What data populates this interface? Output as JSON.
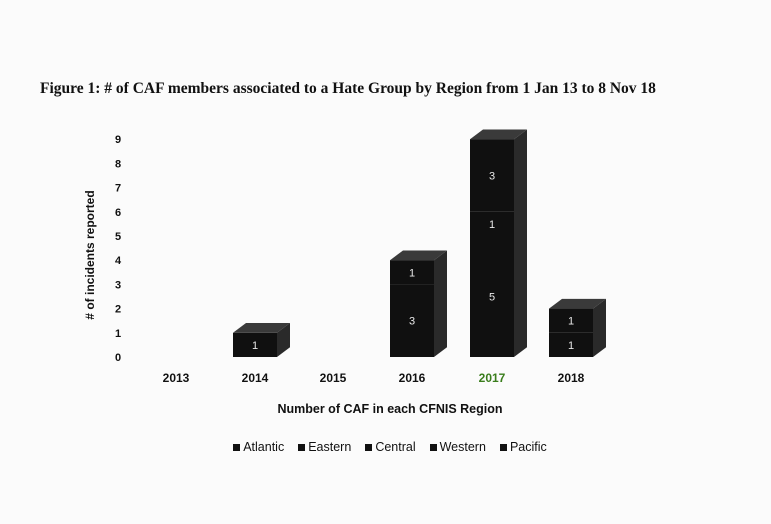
{
  "chart_data": {
    "type": "bar",
    "title": "Figure 1: # of CAF members associated to a Hate Group by Region from 1 Jan 13 to 8 Nov 18",
    "xlabel": "Number of CAF in each CFNIS Region",
    "ylabel": "# of incidents reported",
    "categories": [
      "2013",
      "2014",
      "2015",
      "2016",
      "2017",
      "2018"
    ],
    "ylim": [
      0,
      9
    ],
    "yticks": [
      "0",
      "1",
      "2",
      "3",
      "4",
      "5",
      "6",
      "7",
      "8",
      "9"
    ],
    "stacked": true,
    "grid": false,
    "legend_position": "bottom",
    "series": [
      {
        "name": "Atlantic",
        "values": [
          0,
          0,
          0,
          0,
          0,
          0
        ]
      },
      {
        "name": "Eastern",
        "values": [
          0,
          1,
          0,
          3,
          5,
          1
        ]
      },
      {
        "name": "Central",
        "values": [
          0,
          0,
          0,
          1,
          1,
          1
        ]
      },
      {
        "name": "Western",
        "values": [
          0,
          0,
          0,
          0,
          3,
          0
        ]
      },
      {
        "name": "Pacific",
        "values": [
          0,
          0,
          0,
          0,
          0,
          0
        ]
      }
    ],
    "bar_color": "#101010",
    "label_color": "#e8e8e8",
    "highlight_category": "2017",
    "highlight_color": "#3a7d1c"
  }
}
